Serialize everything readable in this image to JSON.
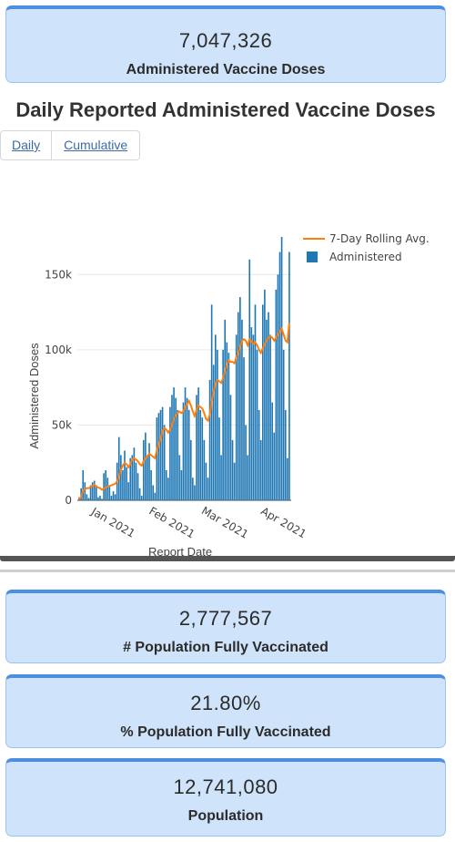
{
  "cards": {
    "administered": {
      "value": "7,047,326",
      "label": "Administered Vaccine Doses"
    },
    "fully_vaccinated": {
      "value": "2,777,567",
      "label": "# Population Fully Vaccinated"
    },
    "pct_fully_vaccinated": {
      "value": "21.80%",
      "label": "% Population Fully Vaccinated"
    },
    "population": {
      "value": "12,741,080",
      "label": "Population"
    }
  },
  "chart_section": {
    "title": "Daily Reported Administered Vaccine Doses",
    "tabs": [
      {
        "label": "Daily"
      },
      {
        "label": "Cumulative"
      }
    ]
  },
  "colors": {
    "bar": "#1f77b4",
    "line": "#ff7f0e",
    "card_bg": "#cfe3fb",
    "card_accent": "#4a8fe0",
    "tab_text": "#3d6aa8"
  },
  "chart_data": {
    "type": "bar",
    "xlabel": "Report Date",
    "ylabel": "Administered Doses",
    "ylim": [
      0,
      175000
    ],
    "y_ticks": [
      0,
      50000,
      100000,
      150000
    ],
    "y_tick_labels": [
      "0",
      "50k",
      "100k",
      "150k"
    ],
    "x_ticks": [
      "2021-01-01",
      "2021-02-01",
      "2021-03-01",
      "2021-04-01"
    ],
    "x_tick_labels": [
      "Jan 2021",
      "Feb 2021",
      "Mar 2021",
      "Apr 2021"
    ],
    "x_range": [
      "2020-12-14",
      "2021-04-06"
    ],
    "legend_position": "top-right",
    "series": [
      {
        "name": "Administered",
        "kind": "bar",
        "x": [
          "2020-12-15",
          "2020-12-16",
          "2020-12-17",
          "2020-12-18",
          "2020-12-19",
          "2020-12-20",
          "2020-12-21",
          "2020-12-22",
          "2020-12-23",
          "2020-12-24",
          "2020-12-25",
          "2020-12-26",
          "2020-12-27",
          "2020-12-28",
          "2020-12-29",
          "2020-12-30",
          "2020-12-31",
          "2021-01-01",
          "2021-01-02",
          "2021-01-03",
          "2021-01-04",
          "2021-01-05",
          "2021-01-06",
          "2021-01-07",
          "2021-01-08",
          "2021-01-09",
          "2021-01-10",
          "2021-01-11",
          "2021-01-12",
          "2021-01-13",
          "2021-01-14",
          "2021-01-15",
          "2021-01-16",
          "2021-01-17",
          "2021-01-18",
          "2021-01-19",
          "2021-01-20",
          "2021-01-21",
          "2021-01-22",
          "2021-01-23",
          "2021-01-24",
          "2021-01-25",
          "2021-01-26",
          "2021-01-27",
          "2021-01-28",
          "2021-01-29",
          "2021-01-30",
          "2021-01-31",
          "2021-02-01",
          "2021-02-02",
          "2021-02-03",
          "2021-02-04",
          "2021-02-05",
          "2021-02-06",
          "2021-02-07",
          "2021-02-08",
          "2021-02-09",
          "2021-02-10",
          "2021-02-11",
          "2021-02-12",
          "2021-02-13",
          "2021-02-14",
          "2021-02-15",
          "2021-02-16",
          "2021-02-17",
          "2021-02-18",
          "2021-02-19",
          "2021-02-20",
          "2021-02-21",
          "2021-02-22",
          "2021-02-23",
          "2021-02-24",
          "2021-02-25",
          "2021-02-26",
          "2021-02-27",
          "2021-02-28",
          "2021-03-01",
          "2021-03-02",
          "2021-03-03",
          "2021-03-04",
          "2021-03-05",
          "2021-03-06",
          "2021-03-07",
          "2021-03-08",
          "2021-03-09",
          "2021-03-10",
          "2021-03-11",
          "2021-03-12",
          "2021-03-13",
          "2021-03-14",
          "2021-03-15",
          "2021-03-16",
          "2021-03-17",
          "2021-03-18",
          "2021-03-19",
          "2021-03-20",
          "2021-03-21",
          "2021-03-22",
          "2021-03-23",
          "2021-03-24",
          "2021-03-25",
          "2021-03-26",
          "2021-03-27",
          "2021-03-28",
          "2021-03-29",
          "2021-03-30",
          "2021-03-31",
          "2021-04-01",
          "2021-04-02",
          "2021-04-03",
          "2021-04-04",
          "2021-04-05"
        ],
        "values": [
          2000,
          8000,
          20000,
          12000,
          4000,
          1500,
          10000,
          12000,
          13000,
          10000,
          2000,
          3000,
          1000,
          18000,
          20000,
          15000,
          10000,
          3000,
          6000,
          4000,
          25000,
          42000,
          30000,
          20000,
          33000,
          22000,
          12000,
          28000,
          30000,
          35000,
          25000,
          18000,
          8000,
          3000,
          40000,
          45000,
          30000,
          38000,
          20000,
          10000,
          5000,
          55000,
          58000,
          60000,
          62000,
          50000,
          20000,
          15000,
          62000,
          70000,
          75000,
          68000,
          60000,
          30000,
          20000,
          65000,
          75000,
          68000,
          60000,
          40000,
          15000,
          10000,
          70000,
          75000,
          60000,
          55000,
          40000,
          25000,
          15000,
          80000,
          130000,
          90000,
          110000,
          100000,
          55000,
          30000,
          100000,
          120000,
          105000,
          98000,
          70000,
          40000,
          25000,
          110000,
          125000,
          135000,
          120000,
          95000,
          50000,
          30000,
          160000,
          115000,
          110000,
          130000,
          100000,
          60000,
          40000,
          130000,
          140000,
          120000,
          125000,
          110000,
          65000,
          45000,
          140000,
          150000,
          165000,
          175000,
          100000,
          60000,
          28000,
          165000
        ],
        "rolling_avg": [
          500,
          2000,
          6500,
          7500,
          8000,
          8000,
          9000,
          9500,
          10500,
          9000,
          8500,
          8000,
          7000,
          7500,
          8500,
          9000,
          9500,
          10000,
          10500,
          11000,
          12500,
          16000,
          20000,
          23000,
          25000,
          24000,
          22000,
          24000,
          27000,
          28000,
          27000,
          26000,
          24000,
          23000,
          26000,
          28000,
          29000,
          31000,
          30000,
          29000,
          28000,
          33000,
          37000,
          41000,
          46000,
          48000,
          47000,
          45000,
          47000,
          50000,
          54000,
          56000,
          58000,
          59000,
          58000,
          59000,
          62000,
          64000,
          66000,
          63000,
          59000,
          56000,
          60000,
          63000,
          62000,
          61000,
          58000,
          54000,
          53000,
          57000,
          66000,
          72000,
          78000,
          80000,
          79000,
          78000,
          81000,
          86000,
          90000,
          93000,
          92000,
          92000,
          91000,
          95000,
          98000,
          102000,
          106000,
          107000,
          106000,
          103000,
          107000,
          106000,
          104000,
          105000,
          103000,
          100000,
          98000,
          101000,
          104000,
          106000,
          108000,
          109000,
          108000,
          106000,
          108000,
          110000,
          112000,
          114000,
          110000,
          106000,
          105000,
          118000
        ]
      },
      {
        "name": "7-Day Rolling Avg.",
        "kind": "line"
      }
    ]
  }
}
